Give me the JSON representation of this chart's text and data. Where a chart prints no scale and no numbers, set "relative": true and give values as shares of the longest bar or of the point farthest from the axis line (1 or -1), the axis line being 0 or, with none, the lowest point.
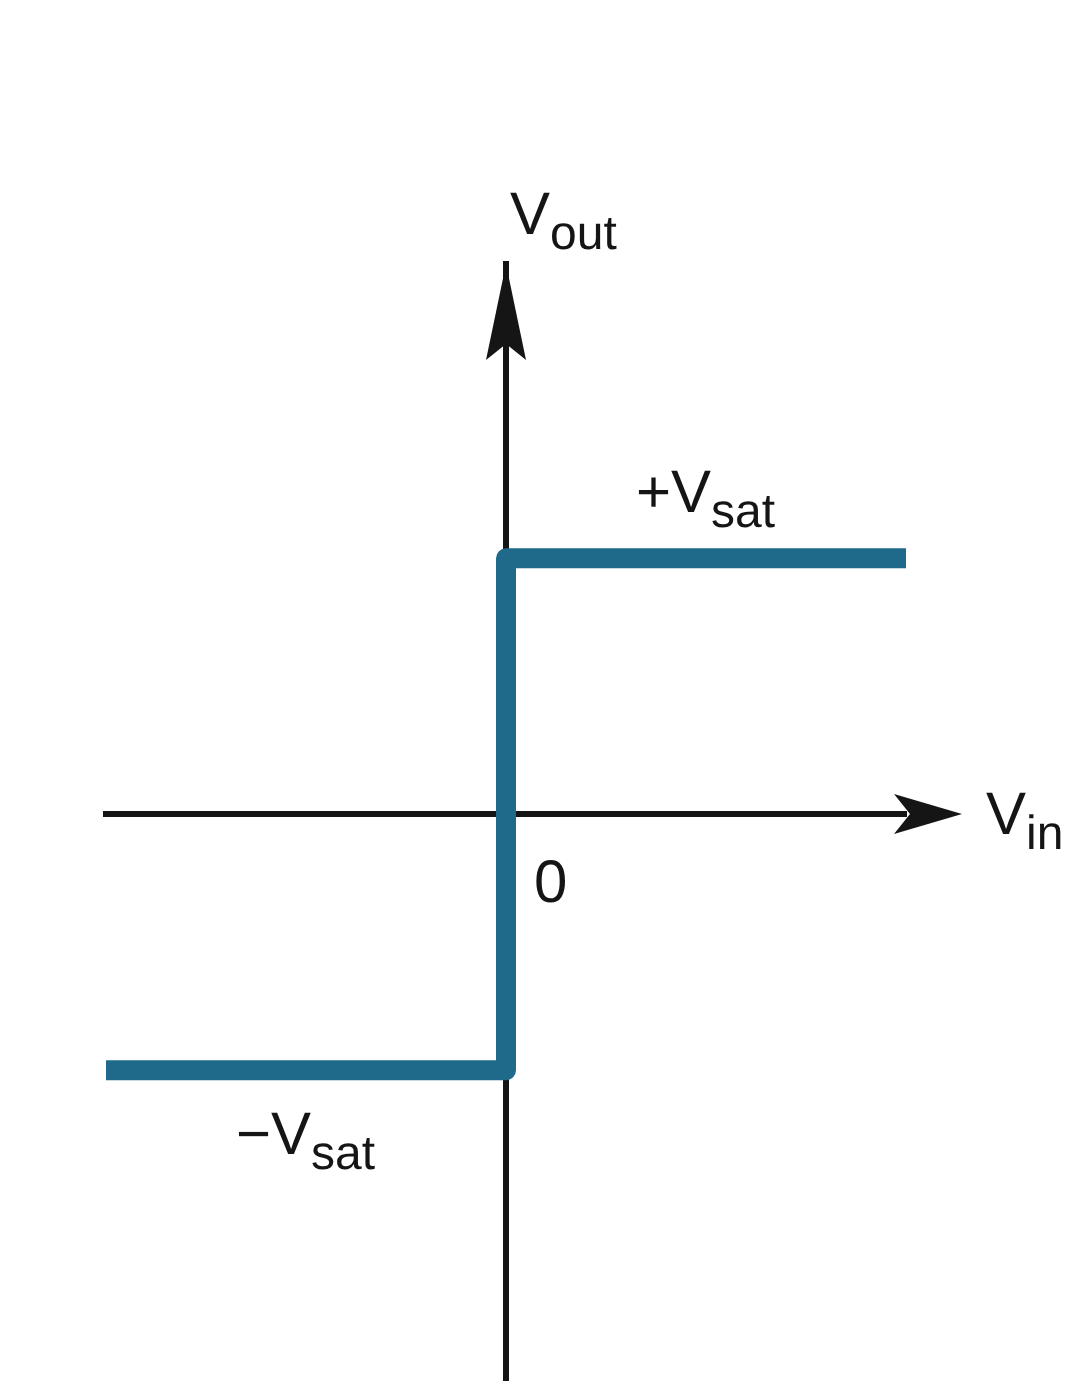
{
  "chart_data": {
    "type": "step",
    "relative": true,
    "xlabel": "V$_{in}$",
    "ylabel": "V$_{out}$",
    "categories": [
      null,
      null,
      null
    ],
    "values": [
      -1,
      1,
      1
    ],
    "color": "#1f6a8a",
    "annotations": [
      {
        "text": "+V$_{sat}$",
        "y": 1
      },
      {
        "text": "−V$_{sat}$",
        "y": -1
      },
      "0"
    ]
  }
}
